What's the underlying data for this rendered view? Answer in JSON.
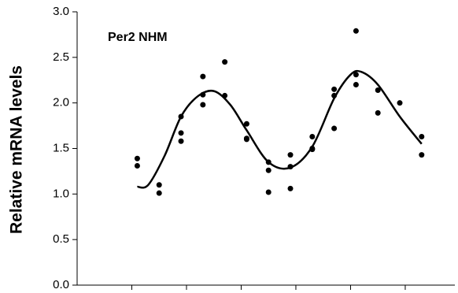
{
  "chart_data": {
    "type": "scatter",
    "annotation": "Per2 NHM",
    "ylabel": "Relative mRNA levels",
    "ylim": [
      0,
      3
    ],
    "yticks": [
      {
        "value": 0,
        "label": "0.0"
      },
      0.5,
      {
        "value": 1,
        "label": "1.0"
      },
      1.5,
      {
        "value": 2,
        "label": "2.0"
      },
      2.5,
      {
        "value": 3,
        "label": "3.0"
      }
    ],
    "xlim": [
      0,
      69
    ],
    "xticks": [
      10,
      20,
      30,
      40,
      50,
      60
    ],
    "color": "#000000",
    "points": {
      "x": [
        11,
        11,
        15,
        15,
        19,
        19,
        19,
        23,
        23,
        23,
        27,
        27,
        31,
        31,
        31,
        35,
        35,
        35,
        39,
        39,
        39,
        43,
        43,
        43,
        47,
        47,
        47,
        51,
        51,
        51,
        55,
        55,
        59,
        63,
        63
      ],
      "y": [
        1.39,
        1.31,
        1.1,
        1.01,
        1.85,
        1.67,
        1.58,
        2.29,
        2.09,
        1.98,
        2.45,
        2.08,
        1.77,
        1.61,
        1.6,
        1.35,
        1.26,
        1.02,
        1.43,
        1.3,
        1.06,
        1.63,
        1.5,
        1.49,
        2.15,
        2.08,
        1.72,
        2.79,
        2.31,
        2.2,
        2.14,
        1.89,
        2.0,
        1.63,
        1.43
      ]
    },
    "fit": {
      "x": [
        11,
        13,
        16,
        19,
        22,
        25,
        28,
        31,
        35,
        39,
        43,
        47,
        50,
        52,
        55,
        59,
        63
      ],
      "y": [
        1.08,
        1.1,
        1.42,
        1.85,
        2.07,
        2.13,
        1.98,
        1.7,
        1.35,
        1.29,
        1.52,
        2.05,
        2.31,
        2.34,
        2.2,
        1.85,
        1.55
      ]
    }
  }
}
